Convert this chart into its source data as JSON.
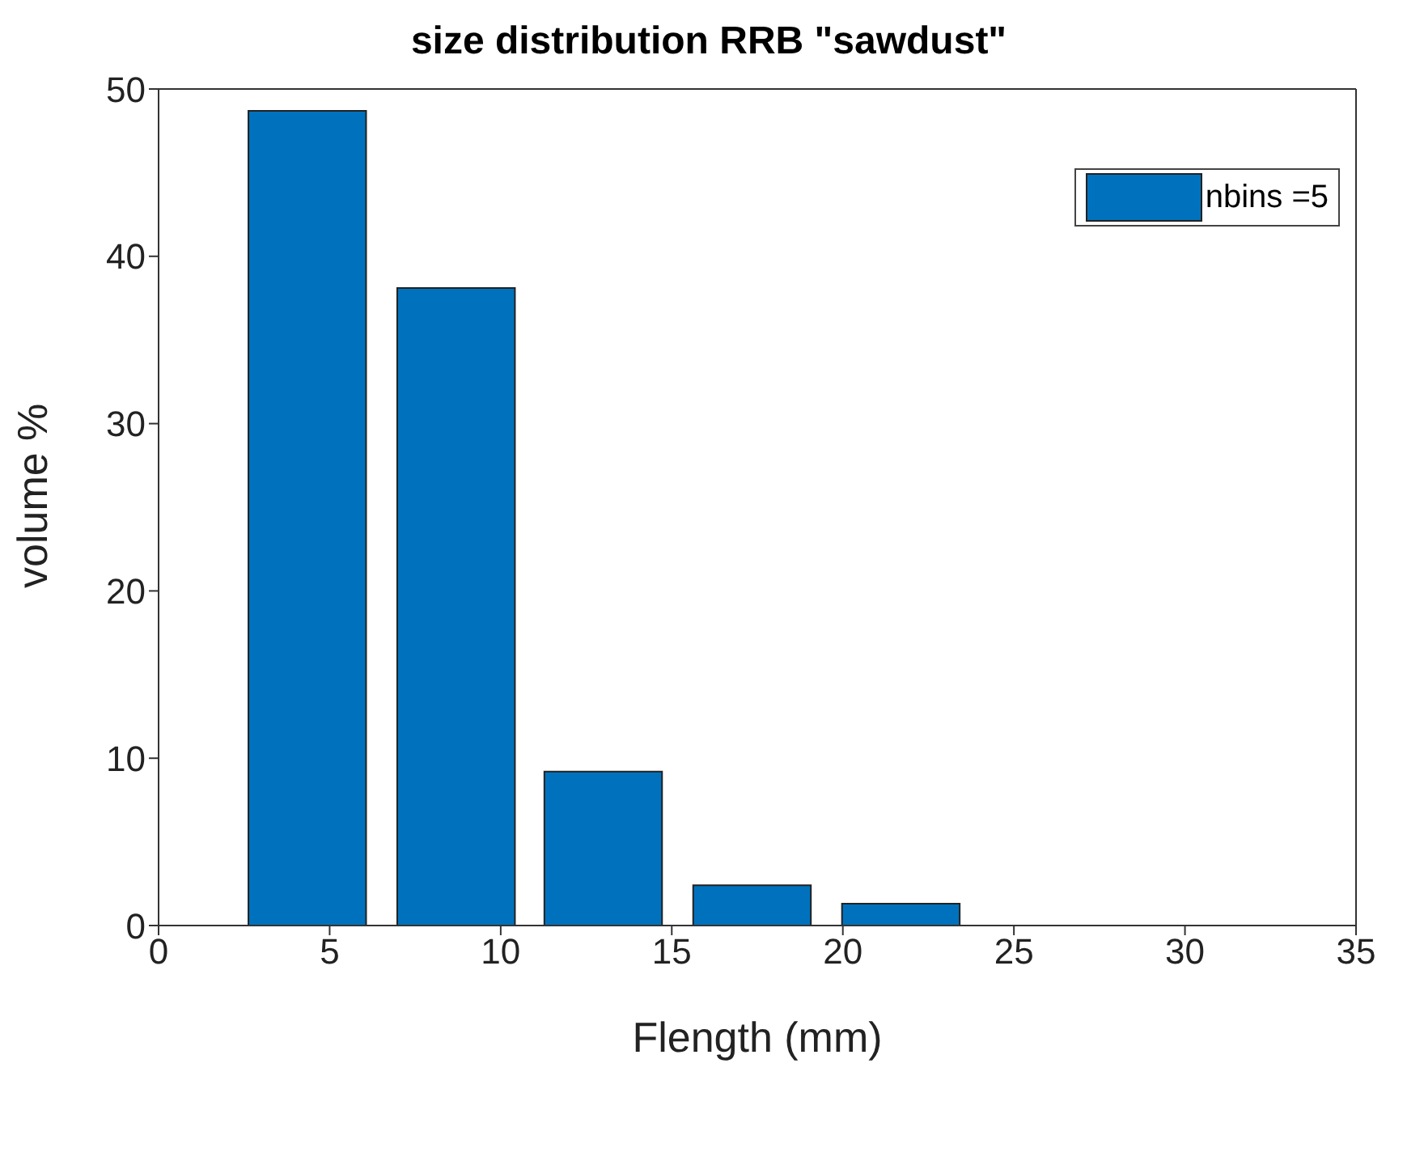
{
  "chart_data": {
    "type": "bar",
    "title": "size distribution RRB \"sawdust\"",
    "xlabel": "Flength (mm)",
    "ylabel": "volume %",
    "x": [
      4.35,
      8.7,
      13.0,
      17.35,
      21.7
    ],
    "series": [
      {
        "name": "nbins =5",
        "color": "#0072bd",
        "values": [
          48.7,
          38.1,
          9.2,
          2.4,
          1.3
        ]
      }
    ],
    "xlim": [
      0,
      35
    ],
    "xticks": [
      0,
      5,
      10,
      15,
      20,
      25,
      30,
      35
    ],
    "ylim": [
      0,
      50
    ],
    "yticks": [
      0,
      10,
      20,
      30,
      40,
      50
    ],
    "grid": false,
    "legend": "top right"
  }
}
